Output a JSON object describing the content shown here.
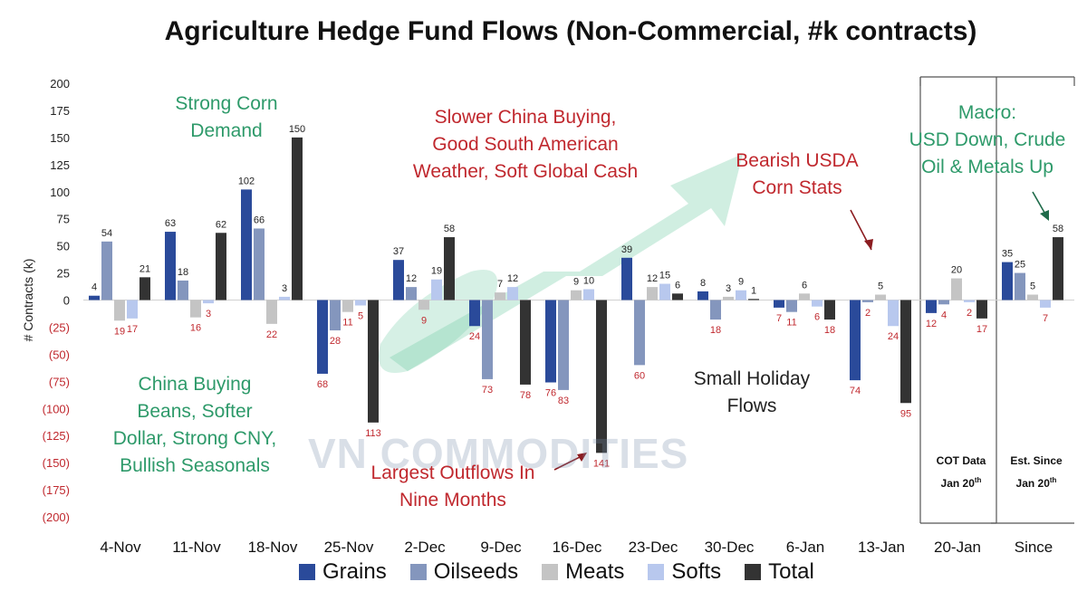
{
  "chart_data": {
    "type": "bar",
    "title": "Agriculture Hedge Fund Flows (Non-Commercial, #k contracts)",
    "ylabel": "# Contracts (k)",
    "ylim": [
      -200,
      200
    ],
    "yticks": [
      "200",
      "175",
      "150",
      "125",
      "100",
      "75",
      "50",
      "25",
      "0",
      "(25)",
      "(50)",
      "(75)",
      "(100)",
      "(125)",
      "(150)",
      "(175)",
      "(200)"
    ],
    "categories": [
      "4-Nov",
      "11-Nov",
      "18-Nov",
      "25-Nov",
      "2-Dec",
      "9-Dec",
      "16-Dec",
      "23-Dec",
      "30-Dec",
      "6-Jan",
      "13-Jan",
      "20-Jan",
      "Since"
    ],
    "series": [
      {
        "name": "Grains",
        "color": "#2a4a9a",
        "values": [
          4,
          63,
          102,
          -68,
          37,
          -24,
          -76,
          39,
          8,
          -7,
          -74,
          -12,
          35
        ]
      },
      {
        "name": "Oilseeds",
        "color": "#8496bd",
        "values": [
          54,
          18,
          66,
          -28,
          12,
          -73,
          -83,
          -60,
          -18,
          -11,
          -2,
          -4,
          25
        ]
      },
      {
        "name": "Meats",
        "color": "#c4c4c4",
        "values": [
          -19,
          -16,
          -22,
          -11,
          -9,
          7,
          9,
          12,
          3,
          6,
          5,
          20,
          5
        ]
      },
      {
        "name": "Softs",
        "color": "#b8c8ee",
        "values": [
          -17,
          -3,
          3,
          -5,
          19,
          12,
          10,
          15,
          9,
          -6,
          -24,
          -2,
          -7
        ]
      },
      {
        "name": "Total",
        "color": "#333333",
        "values": [
          21,
          62,
          150,
          -113,
          58,
          -78,
          -141,
          6,
          1,
          -18,
          -95,
          -17,
          58
        ]
      }
    ],
    "value_labels": [
      [
        "4",
        "54",
        "19",
        "17",
        "21"
      ],
      [
        "63",
        "18",
        "16",
        "3",
        "62"
      ],
      [
        "102",
        "66",
        "22",
        "3",
        "150"
      ],
      [
        "68",
        "28",
        "11",
        "5",
        "113"
      ],
      [
        "37",
        "12",
        "9",
        "19",
        "58"
      ],
      [
        "24",
        "73",
        "7",
        "12",
        ""
      ],
      [
        "76",
        "83",
        "9",
        "10",
        "141"
      ],
      [
        "39",
        "60",
        "12",
        "15",
        "6"
      ],
      [
        "8",
        "18",
        "3",
        "9",
        "1"
      ],
      [
        "7",
        "11",
        "6",
        "6",
        "18"
      ],
      [
        "74",
        "2",
        "5",
        "24",
        "95"
      ],
      [
        "12",
        "4",
        "20",
        "2",
        "17"
      ],
      [
        "35",
        "25",
        "5",
        "7",
        "58"
      ]
    ],
    "extra_labels": [
      "78"
    ],
    "grid": false,
    "legend_position": "bottom"
  },
  "annotations": {
    "corn": [
      "Strong Corn",
      "Demand"
    ],
    "china_buying": [
      "China Buying",
      "Beans, Softer",
      "Dollar, Strong CNY,",
      "Bullish Seasonals"
    ],
    "slower_china": [
      "Slower China Buying,",
      "Good South American",
      "Weather, Soft Global Cash"
    ],
    "bearish": [
      "Bearish USDA",
      "Corn Stats"
    ],
    "macro": [
      "Macro:",
      "USD Down, Crude",
      "Oil & Metals Up"
    ],
    "largest": [
      "Largest Outflows In",
      "Nine Months"
    ],
    "holiday": [
      "Small Holiday",
      "Flows"
    ],
    "cot_data": [
      "COT Data",
      "Jan 20",
      "th"
    ],
    "est_since": [
      "Est. Since",
      "Jan 20",
      "th"
    ]
  },
  "watermark": "VN COMMODITIES",
  "colors": {
    "positive_label": "#222222",
    "negative_label": "#c0282e",
    "green_text": "#2e9a6a",
    "red_text": "#c0282e"
  }
}
